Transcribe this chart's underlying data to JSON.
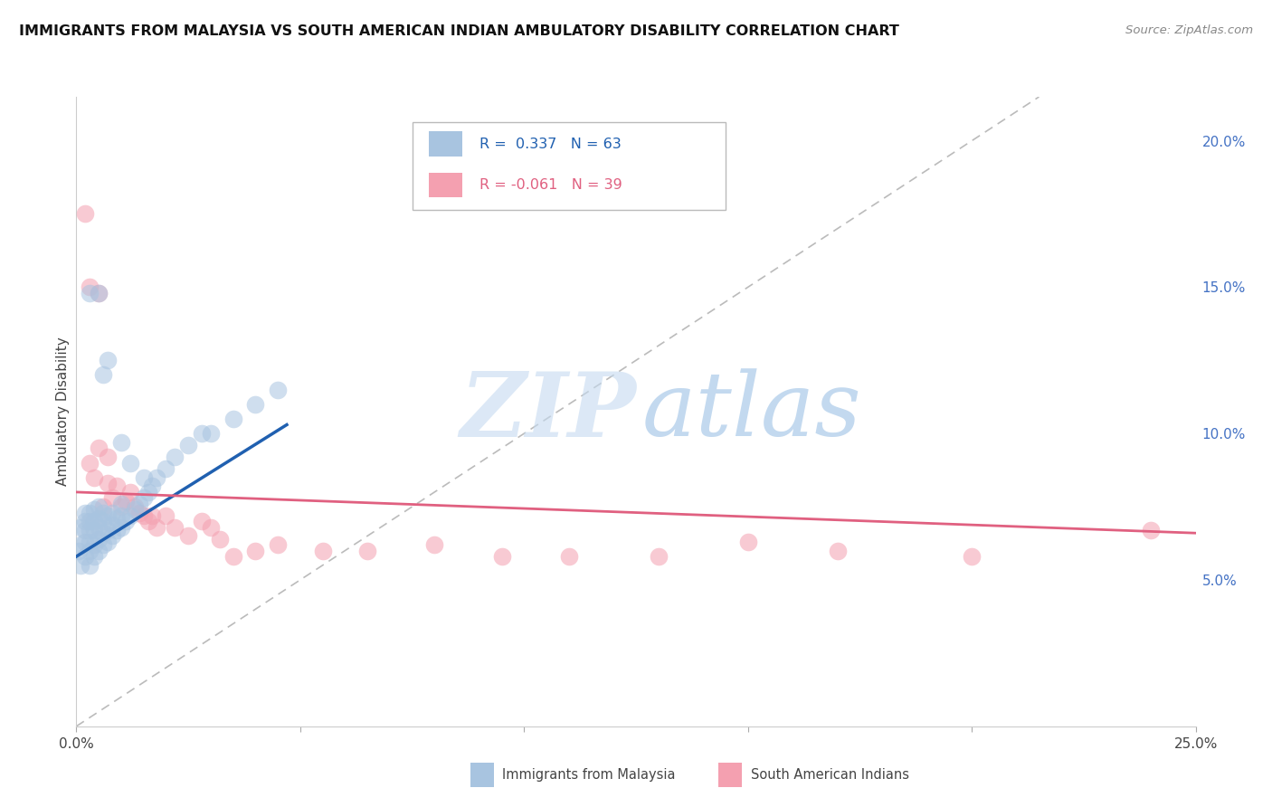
{
  "title": "IMMIGRANTS FROM MALAYSIA VS SOUTH AMERICAN INDIAN AMBULATORY DISABILITY CORRELATION CHART",
  "source": "Source: ZipAtlas.com",
  "ylabel": "Ambulatory Disability",
  "xlim": [
    0.0,
    0.25
  ],
  "ylim": [
    0.0,
    0.215
  ],
  "yticks_right": [
    0.05,
    0.1,
    0.15,
    0.2
  ],
  "ytick_labels_right": [
    "5.0%",
    "10.0%",
    "15.0%",
    "20.0%"
  ],
  "r_blue": 0.337,
  "n_blue": 63,
  "r_pink": -0.061,
  "n_pink": 39,
  "blue_color": "#a8c4e0",
  "pink_color": "#f4a0b0",
  "blue_line_color": "#2060b0",
  "pink_line_color": "#e06080",
  "diagonal_color": "#bbbbbb",
  "watermark_zip": "ZIP",
  "watermark_atlas": "atlas",
  "legend_label_blue": "Immigrants from Malaysia",
  "legend_label_pink": "South American Indians",
  "blue_scatter_x": [
    0.0005,
    0.001,
    0.001,
    0.001,
    0.002,
    0.002,
    0.002,
    0.002,
    0.002,
    0.003,
    0.003,
    0.003,
    0.003,
    0.003,
    0.003,
    0.004,
    0.004,
    0.004,
    0.004,
    0.004,
    0.005,
    0.005,
    0.005,
    0.005,
    0.005,
    0.006,
    0.006,
    0.006,
    0.006,
    0.007,
    0.007,
    0.007,
    0.008,
    0.008,
    0.008,
    0.009,
    0.009,
    0.01,
    0.01,
    0.01,
    0.011,
    0.012,
    0.013,
    0.014,
    0.015,
    0.016,
    0.017,
    0.018,
    0.02,
    0.022,
    0.025,
    0.028,
    0.03,
    0.035,
    0.04,
    0.045,
    0.003,
    0.005,
    0.006,
    0.007,
    0.01,
    0.012,
    0.015
  ],
  "blue_scatter_y": [
    0.06,
    0.055,
    0.062,
    0.068,
    0.058,
    0.063,
    0.067,
    0.07,
    0.073,
    0.055,
    0.06,
    0.063,
    0.067,
    0.07,
    0.073,
    0.058,
    0.062,
    0.067,
    0.07,
    0.074,
    0.06,
    0.064,
    0.068,
    0.071,
    0.075,
    0.062,
    0.066,
    0.07,
    0.073,
    0.063,
    0.067,
    0.072,
    0.065,
    0.069,
    0.073,
    0.067,
    0.071,
    0.068,
    0.072,
    0.076,
    0.07,
    0.072,
    0.074,
    0.076,
    0.078,
    0.08,
    0.082,
    0.085,
    0.088,
    0.092,
    0.096,
    0.1,
    0.1,
    0.105,
    0.11,
    0.115,
    0.148,
    0.148,
    0.12,
    0.125,
    0.097,
    0.09,
    0.085
  ],
  "pink_scatter_x": [
    0.002,
    0.003,
    0.004,
    0.005,
    0.005,
    0.006,
    0.007,
    0.007,
    0.008,
    0.009,
    0.01,
    0.011,
    0.012,
    0.013,
    0.014,
    0.015,
    0.016,
    0.017,
    0.018,
    0.02,
    0.022,
    0.025,
    0.028,
    0.03,
    0.032,
    0.035,
    0.04,
    0.045,
    0.055,
    0.065,
    0.08,
    0.095,
    0.11,
    0.13,
    0.15,
    0.17,
    0.2,
    0.24,
    0.003
  ],
  "pink_scatter_y": [
    0.175,
    0.09,
    0.085,
    0.095,
    0.148,
    0.075,
    0.083,
    0.092,
    0.078,
    0.082,
    0.075,
    0.077,
    0.08,
    0.075,
    0.073,
    0.072,
    0.07,
    0.072,
    0.068,
    0.072,
    0.068,
    0.065,
    0.07,
    0.068,
    0.064,
    0.058,
    0.06,
    0.062,
    0.06,
    0.06,
    0.062,
    0.058,
    0.058,
    0.058,
    0.063,
    0.06,
    0.058,
    0.067,
    0.15
  ],
  "blue_line_x": [
    0.0,
    0.047
  ],
  "blue_line_y": [
    0.058,
    0.103
  ],
  "pink_line_x": [
    0.0,
    0.25
  ],
  "pink_line_y": [
    0.08,
    0.066
  ]
}
